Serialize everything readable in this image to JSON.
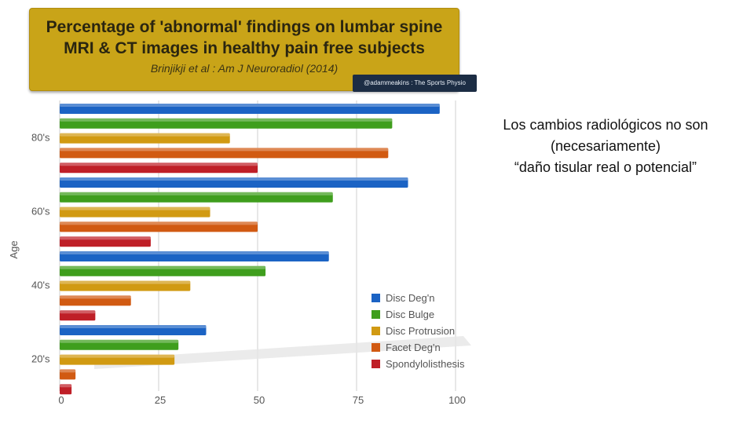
{
  "title": {
    "line1": "Percentage of 'abnormal' findings on lumbar spine",
    "line2": "MRI & CT images in healthy pain free subjects",
    "citation": "Brinjikji et al : Am J Neuroradiol (2014)",
    "credit": "@adammeakins : The Sports Physio"
  },
  "side_note": {
    "line1": "Los cambios radiológicos no son",
    "line2": "(necesariamente)",
    "line3": "“daño tisular real o potencial”"
  },
  "colors": {
    "title_bg": "#c9a418",
    "disc_degn": "#1b63c4",
    "disc_bulge": "#3f9e1d",
    "disc_protrusion": "#d19a12",
    "facet_degn": "#d15a12",
    "spondylolisthesis": "#bf1f27"
  },
  "chart_data": {
    "type": "bar",
    "orientation": "horizontal",
    "categories": [
      "80's",
      "60's",
      "40's",
      "20's"
    ],
    "series": [
      {
        "name": "Disc Deg'n",
        "values": [
          96,
          88,
          68,
          37
        ]
      },
      {
        "name": "Disc Bulge",
        "values": [
          84,
          69,
          52,
          30
        ]
      },
      {
        "name": "Disc Protrusion",
        "values": [
          43,
          38,
          33,
          29
        ]
      },
      {
        "name": "Facet Deg'n",
        "values": [
          83,
          50,
          18,
          4
        ]
      },
      {
        "name": "Spondylolisthesis",
        "values": [
          50,
          23,
          9,
          3
        ]
      }
    ],
    "ylabel": "Age",
    "xlabel": "",
    "xlim": [
      0,
      100
    ],
    "xticks": [
      "0",
      "25",
      "50",
      "75",
      "100"
    ],
    "grid": true,
    "legend": "bottom-right"
  }
}
